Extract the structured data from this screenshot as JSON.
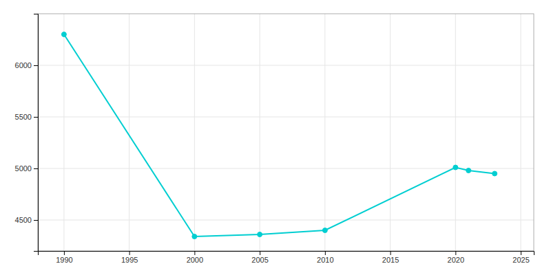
{
  "chart_data": {
    "type": "line",
    "x": [
      1990,
      2000,
      2005,
      2010,
      2020,
      2021,
      2023
    ],
    "values": [
      6300,
      4340,
      4360,
      4400,
      5010,
      4980,
      4950
    ],
    "color": "#00CED1",
    "marker": "circle",
    "xlim": [
      1988,
      2026
    ],
    "ylim": [
      4200,
      6500
    ],
    "xticks": [
      1990,
      1995,
      2000,
      2005,
      2010,
      2015,
      2020,
      2025
    ],
    "yticks": [
      4500,
      5000,
      5500,
      6000
    ],
    "grid": true
  }
}
